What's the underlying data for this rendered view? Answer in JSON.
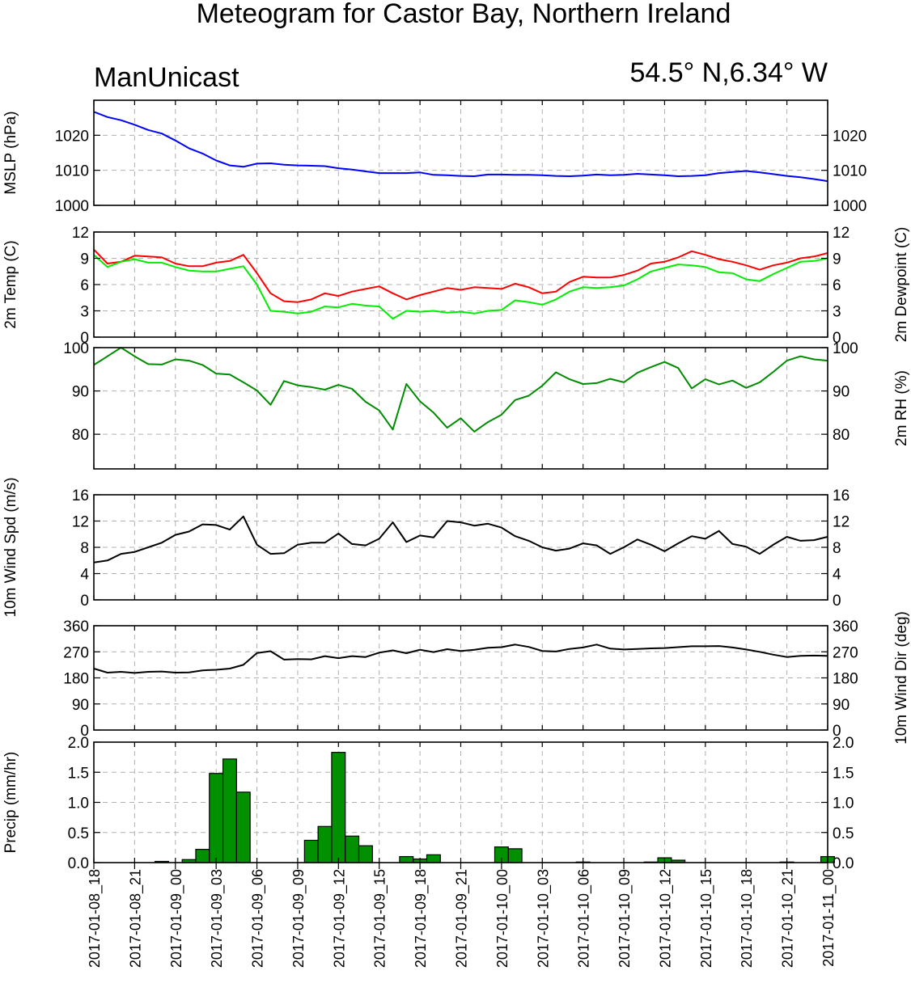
{
  "title": "Meteogram for Castor Bay, Northern Ireland",
  "left_subtitle": "ManUnicast",
  "right_subtitle": "54.5° N,6.34° W",
  "chart_data": [
    {
      "type": "line",
      "ylabel_left": "MSLP (hPa)",
      "ylabel_right": "",
      "ylim": [
        1000,
        1030
      ],
      "yticks": [
        1000,
        1010,
        1020
      ],
      "grid": true,
      "series": [
        {
          "color": "#0000ff",
          "values": [
            1026.7,
            1025.2,
            1024.3,
            1023.0,
            1021.5,
            1020.5,
            1018.5,
            1016.3,
            1014.8,
            1012.8,
            1011.4,
            1011.0,
            1011.9,
            1012.0,
            1011.6,
            1011.4,
            1011.3,
            1011.2,
            1010.6,
            1010.2,
            1009.7,
            1009.2,
            1009.2,
            1009.2,
            1009.4,
            1008.7,
            1008.6,
            1008.4,
            1008.3,
            1008.8,
            1008.8,
            1008.7,
            1008.7,
            1008.6,
            1008.4,
            1008.3,
            1008.5,
            1008.8,
            1008.6,
            1008.7,
            1009.0,
            1008.8,
            1008.6,
            1008.3,
            1008.4,
            1008.6,
            1009.2,
            1009.5,
            1009.8,
            1009.4,
            1008.9,
            1008.4,
            1008.0,
            1007.5,
            1006.9
          ]
        }
      ]
    },
    {
      "type": "line",
      "ylabel_left": "2m Temp (C)",
      "ylabel_right": "2m Dewpoint (C)",
      "ylim": [
        0,
        12
      ],
      "yticks": [
        0,
        3,
        6,
        9,
        12
      ],
      "grid": true,
      "series": [
        {
          "color": "#ff0000",
          "values": [
            10.0,
            8.4,
            8.6,
            9.3,
            9.2,
            9.1,
            8.4,
            8.1,
            8.1,
            8.5,
            8.7,
            9.4,
            7.3,
            5.0,
            4.1,
            4.0,
            4.3,
            5.0,
            4.7,
            5.2,
            5.5,
            5.8,
            5.0,
            4.3,
            4.8,
            5.2,
            5.6,
            5.4,
            5.7,
            5.6,
            5.5,
            6.1,
            5.7,
            5.0,
            5.2,
            6.3,
            6.9,
            6.8,
            6.8,
            7.1,
            7.6,
            8.4,
            8.6,
            9.1,
            9.8,
            9.4,
            8.9,
            8.6,
            8.2,
            7.7,
            8.2,
            8.5,
            9.0,
            9.2,
            9.6
          ]
        },
        {
          "color": "#00ee00",
          "values": [
            9.4,
            8.0,
            8.6,
            8.9,
            8.5,
            8.5,
            8.0,
            7.6,
            7.5,
            7.5,
            7.8,
            8.1,
            6.0,
            3.0,
            2.9,
            2.7,
            2.9,
            3.5,
            3.4,
            3.8,
            3.6,
            3.5,
            2.1,
            3.0,
            2.9,
            3.0,
            2.8,
            2.9,
            2.7,
            3.0,
            3.1,
            4.2,
            4.0,
            3.7,
            4.3,
            5.2,
            5.7,
            5.6,
            5.7,
            5.9,
            6.6,
            7.5,
            7.9,
            8.3,
            8.2,
            8.0,
            7.4,
            7.3,
            6.6,
            6.4,
            7.2,
            7.9,
            8.6,
            8.7,
            9.0
          ]
        }
      ]
    },
    {
      "type": "line",
      "ylabel_left": "",
      "ylabel_right": "2m RH (%)",
      "ylim": [
        72,
        100
      ],
      "yticks": [
        80,
        90,
        100
      ],
      "grid": true,
      "series": [
        {
          "color": "#008c00",
          "values": [
            96.0,
            98.0,
            100.0,
            98.0,
            96.2,
            96.1,
            97.3,
            97.0,
            96.0,
            94.0,
            93.8,
            92.0,
            90.1,
            86.8,
            92.3,
            91.3,
            90.9,
            90.3,
            91.4,
            90.5,
            87.5,
            85.5,
            81.1,
            91.6,
            87.6,
            85.0,
            81.5,
            83.7,
            80.6,
            82.8,
            84.5,
            87.9,
            88.9,
            91.2,
            94.3,
            92.7,
            91.6,
            91.8,
            92.8,
            92.0,
            94.2,
            95.5,
            96.7,
            95.3,
            90.6,
            92.7,
            91.5,
            92.4,
            90.7,
            92.0,
            94.4,
            97.0,
            98.0,
            97.3,
            97.0
          ]
        }
      ]
    },
    {
      "type": "line",
      "ylabel_left": "10m Wind Spd (m/s)",
      "ylabel_right": "",
      "ylim": [
        0,
        16
      ],
      "yticks": [
        0,
        4,
        8,
        12,
        16
      ],
      "grid": true,
      "series": [
        {
          "color": "#000000",
          "values": [
            5.7,
            6.0,
            7.0,
            7.3,
            8.0,
            8.7,
            9.9,
            10.4,
            11.5,
            11.4,
            10.7,
            12.7,
            8.4,
            7.0,
            7.1,
            8.4,
            8.7,
            8.7,
            10.1,
            8.5,
            8.3,
            9.3,
            11.8,
            8.8,
            9.8,
            9.5,
            12.0,
            11.8,
            11.3,
            11.6,
            11.0,
            9.7,
            9.0,
            8.0,
            7.5,
            7.8,
            8.6,
            8.3,
            7.0,
            8.0,
            9.2,
            8.4,
            7.4,
            8.6,
            9.7,
            9.3,
            10.5,
            8.5,
            8.1,
            7.0,
            8.4,
            9.6,
            9.0,
            9.1,
            9.6
          ]
        }
      ]
    },
    {
      "type": "line",
      "ylabel_left": "",
      "ylabel_right": "10m Wind Dir (deg)",
      "ylim": [
        0,
        360
      ],
      "yticks": [
        0,
        90,
        180,
        270,
        360
      ],
      "grid": true,
      "series": [
        {
          "color": "#000000",
          "values": [
            212,
            198,
            201,
            197,
            201,
            202,
            198,
            199,
            206,
            208,
            212,
            225,
            266,
            272,
            243,
            245,
            244,
            255,
            248,
            255,
            252,
            267,
            275,
            265,
            277,
            269,
            279,
            273,
            277,
            284,
            286,
            295,
            287,
            273,
            271,
            280,
            285,
            295,
            281,
            278,
            280,
            282,
            283,
            286,
            289,
            289,
            290,
            285,
            278,
            270,
            260,
            252,
            256,
            257,
            256
          ]
        }
      ]
    },
    {
      "type": "bar",
      "ylabel_left": "Precip (mm/hr)",
      "ylabel_right": "",
      "ylim": [
        0,
        2.0
      ],
      "yticks": [
        0.0,
        0.5,
        1.0,
        1.5,
        2.0
      ],
      "ytick_decimals": 1,
      "grid": true,
      "series": [
        {
          "color": "#009000",
          "values": [
            0,
            0,
            0,
            0,
            0,
            0.02,
            0,
            0.05,
            0.22,
            1.48,
            1.72,
            1.17,
            0,
            0,
            0,
            0,
            0.37,
            0.6,
            1.83,
            0.44,
            0.28,
            0,
            0,
            0.1,
            0.06,
            0.13,
            0,
            0,
            0,
            0,
            0.26,
            0.23,
            0,
            0,
            0,
            0,
            0.01,
            0,
            0,
            0,
            0,
            0.01,
            0.08,
            0.04,
            0,
            0,
            0,
            0,
            0,
            0,
            0,
            0.01,
            0,
            0,
            0.1
          ]
        }
      ]
    }
  ],
  "x_tick_labels": [
    "2017-01-08_18",
    "2017-01-08_21",
    "2017-01-09_00",
    "2017-01-09_03",
    "2017-01-09_06",
    "2017-01-09_09",
    "2017-01-09_12",
    "2017-01-09_15",
    "2017-01-09_18",
    "2017-01-09_21",
    "2017-01-10_00",
    "2017-01-10_03",
    "2017-01-10_06",
    "2017-01-10_09",
    "2017-01-10_12",
    "2017-01-10_15",
    "2017-01-10_18",
    "2017-01-10_21",
    "2017-01-11_00"
  ]
}
